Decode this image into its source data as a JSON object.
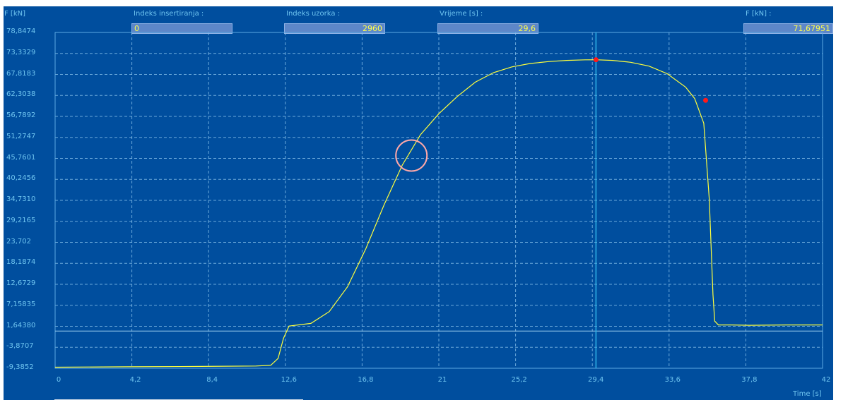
{
  "header": {
    "y_unit_label": "F [kN]",
    "insertion_index": {
      "label": "Indeks insertiranja :",
      "value": "0"
    },
    "sample_index": {
      "label": "Indeks uzorka :",
      "value": "2960"
    },
    "time": {
      "label": "Vrijeme [s] :",
      "value": "29,6"
    },
    "force": {
      "label": "F [kN] :",
      "value": "71,67951"
    }
  },
  "colors": {
    "background": "#004e9e",
    "curve": "#ffff3c",
    "marker": "#ff1a1a",
    "cursor": "#2fb2e8",
    "axis_text": "#6fc5f0"
  },
  "chart_data": {
    "type": "line",
    "title": "",
    "xlabel": "Time [s]",
    "ylabel": "F [kN]",
    "xlim": [
      0,
      42
    ],
    "ylim": [
      -9.3852,
      78.8474
    ],
    "x_ticks": [
      "0",
      "4,2",
      "8,4",
      "12,6",
      "16,8",
      "21",
      "25,2",
      "29,4",
      "33,6",
      "37,8",
      "42"
    ],
    "y_ticks": [
      "78,8474",
      "73,3329",
      "67,8183",
      "62,3038",
      "56,7892",
      "51,2747",
      "45,7601",
      "40,2456",
      "34,7310",
      "29,2165",
      "23,702",
      "18,1874",
      "12,6729",
      "7,15835",
      "1,64380",
      "-3,8707",
      "-9,3852"
    ],
    "grid": true,
    "series": [
      {
        "x": [
          0,
          4,
          8,
          11,
          11.8,
          12.2,
          12.5,
          12.8,
          14,
          15,
          16,
          17,
          18,
          19,
          20,
          21,
          22,
          23,
          24,
          25,
          26,
          27,
          28,
          29,
          29.6,
          30.5,
          31.5,
          32.5,
          33.5,
          34.5,
          35,
          35.5,
          35.8,
          36,
          36.1,
          36.3,
          36.6,
          37,
          38,
          40,
          42
        ],
        "y": [
          -9.1,
          -9.0,
          -8.9,
          -8.8,
          -8.6,
          -6.8,
          -1.5,
          1.7,
          2.4,
          5.5,
          12,
          22,
          33.5,
          44,
          52,
          57.5,
          62,
          65.8,
          68.3,
          69.8,
          70.7,
          71.2,
          71.5,
          71.65,
          71.68,
          71.5,
          71.0,
          70.0,
          68.0,
          64.5,
          61.5,
          55,
          35,
          10,
          3,
          2.0,
          2.0,
          2.0,
          1.9,
          2.0,
          2.0
        ]
      }
    ],
    "markers": [
      {
        "x": 29.6,
        "y": 71.68
      },
      {
        "x": 35.6,
        "y": 61.0
      }
    ],
    "cursor_x": 29.6,
    "reference_y": 0.4,
    "highlight_circle": {
      "x": 19.5,
      "y": 46.5
    }
  }
}
